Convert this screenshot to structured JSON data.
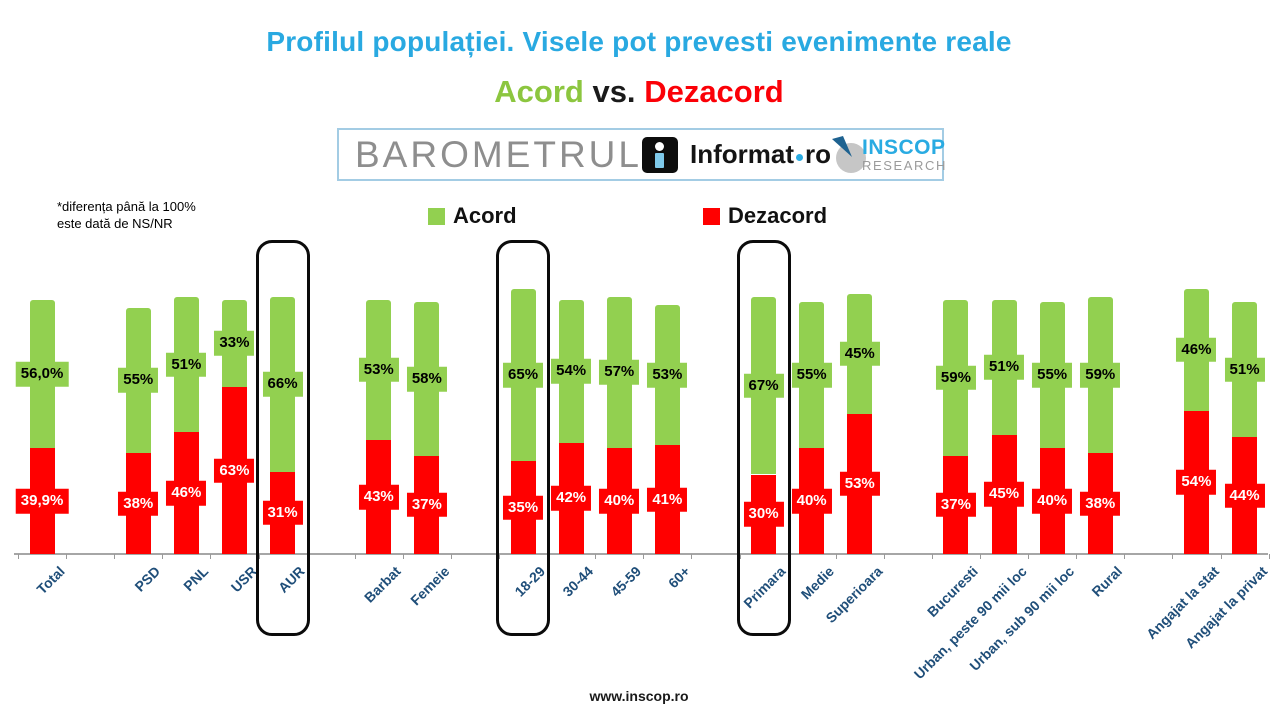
{
  "header": {
    "title": "Profilul populației. Visele pot prevesti evenimente reale",
    "subtitle": {
      "acord": "Acord",
      "vs": "vs.",
      "dezacord": "Dezacord"
    }
  },
  "banner": {
    "barometrul": "BAROMETRUL",
    "informat": {
      "left": "Informat",
      "right": "ro"
    },
    "inscop": {
      "line1": "INSCOP",
      "line2": "RESEARCH"
    }
  },
  "note": {
    "line1": "*diferența până la 100%",
    "line2": "este dată de NS/NR"
  },
  "legend": [
    {
      "label": "Acord",
      "color": "#92D050"
    },
    {
      "label": "Dezacord",
      "color": "#FF0000"
    }
  ],
  "footer": {
    "url": "www.inscop.ro"
  },
  "chart_data": {
    "type": "bar",
    "stacked": true,
    "ylim": [
      0,
      100
    ],
    "unit": "%",
    "grid": false,
    "legend_position": "top",
    "series_names": [
      "Acord",
      "Dezacord"
    ],
    "colors": {
      "acord": "#92D050",
      "dezacord": "#FF0000"
    },
    "categories": [
      {
        "label": "Total",
        "slot": 0,
        "acord": 56.0,
        "dezacord": 39.9,
        "acord_label": "56,0%",
        "dezacord_label": "39,9%",
        "highlight": false
      },
      {
        "label": "PSD",
        "slot": 2,
        "acord": 55,
        "dezacord": 38,
        "acord_label": "55%",
        "dezacord_label": "38%",
        "highlight": false
      },
      {
        "label": "PNL",
        "slot": 3,
        "acord": 51,
        "dezacord": 46,
        "acord_label": "51%",
        "dezacord_label": "46%",
        "highlight": false
      },
      {
        "label": "USR",
        "slot": 4,
        "acord": 33,
        "dezacord": 63,
        "acord_label": "33%",
        "dezacord_label": "63%",
        "highlight": false
      },
      {
        "label": "AUR",
        "slot": 5,
        "acord": 66,
        "dezacord": 31,
        "acord_label": "66%",
        "dezacord_label": "31%",
        "highlight": true
      },
      {
        "label": "Barbat",
        "slot": 7,
        "acord": 53,
        "dezacord": 43,
        "acord_label": "53%",
        "dezacord_label": "43%",
        "highlight": false
      },
      {
        "label": "Femeie",
        "slot": 8,
        "acord": 58,
        "dezacord": 37,
        "acord_label": "58%",
        "dezacord_label": "37%",
        "highlight": false
      },
      {
        "label": "18-29",
        "slot": 10,
        "acord": 65,
        "dezacord": 35,
        "acord_label": "65%",
        "dezacord_label": "35%",
        "highlight": true
      },
      {
        "label": "30-44",
        "slot": 11,
        "acord": 54,
        "dezacord": 42,
        "acord_label": "54%",
        "dezacord_label": "42%",
        "highlight": false
      },
      {
        "label": "45-59",
        "slot": 12,
        "acord": 57,
        "dezacord": 40,
        "acord_label": "57%",
        "dezacord_label": "40%",
        "highlight": false
      },
      {
        "label": "60+",
        "slot": 13,
        "acord": 53,
        "dezacord": 41,
        "acord_label": "53%",
        "dezacord_label": "41%",
        "highlight": false
      },
      {
        "label": "Primara",
        "slot": 15,
        "acord": 67,
        "dezacord": 30,
        "acord_label": "67%",
        "dezacord_label": "30%",
        "highlight": true
      },
      {
        "label": "Medie",
        "slot": 16,
        "acord": 55,
        "dezacord": 40,
        "acord_label": "55%",
        "dezacord_label": "40%",
        "highlight": false
      },
      {
        "label": "Superioara",
        "slot": 17,
        "acord": 45,
        "dezacord": 53,
        "acord_label": "45%",
        "dezacord_label": "53%",
        "highlight": false
      },
      {
        "label": "Bucuresti",
        "slot": 19,
        "acord": 59,
        "dezacord": 37,
        "acord_label": "59%",
        "dezacord_label": "37%",
        "highlight": false
      },
      {
        "label": "Urban, peste 90 mii loc",
        "slot": 20,
        "acord": 51,
        "dezacord": 45,
        "acord_label": "51%",
        "dezacord_label": "45%",
        "highlight": false
      },
      {
        "label": "Urban, sub 90 mii loc",
        "slot": 21,
        "acord": 55,
        "dezacord": 40,
        "acord_label": "55%",
        "dezacord_label": "40%",
        "highlight": false
      },
      {
        "label": "Rural",
        "slot": 22,
        "acord": 59,
        "dezacord": 38,
        "acord_label": "59%",
        "dezacord_label": "38%",
        "highlight": false
      },
      {
        "label": "Angajat la stat",
        "slot": 24,
        "acord": 46,
        "dezacord": 54,
        "acord_label": "46%",
        "dezacord_label": "54%",
        "highlight": false
      },
      {
        "label": "Angajat la privat",
        "slot": 25,
        "acord": 51,
        "dezacord": 44,
        "acord_label": "51%",
        "dezacord_label": "44%",
        "highlight": false
      }
    ]
  }
}
